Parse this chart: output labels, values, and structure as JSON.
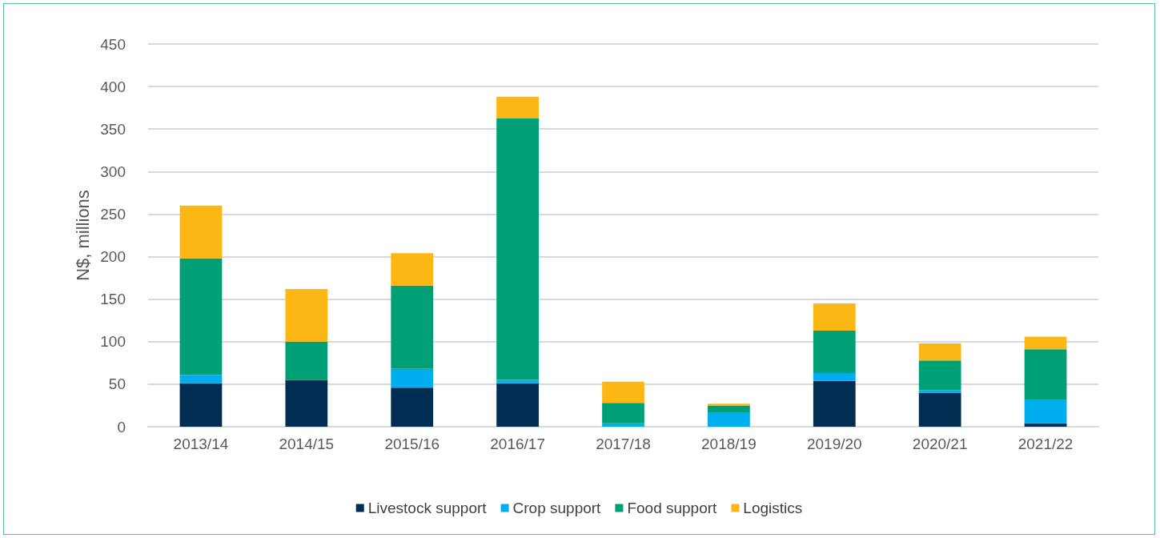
{
  "chart_data": {
    "type": "bar",
    "ylabel": "N$, millions",
    "categories": [
      "2013/14",
      "2014/15",
      "2015/16",
      "2016/17",
      "2017/18",
      "2018/19",
      "2019/20",
      "2020/21",
      "2021/22"
    ],
    "series": [
      {
        "name": "Livestock support",
        "color": "#002d51",
        "values": [
          51,
          55,
          46,
          51,
          0,
          0,
          54,
          40,
          4
        ]
      },
      {
        "name": "Crop support",
        "color": "#00adef",
        "values": [
          10,
          0,
          22,
          4,
          4,
          17,
          9,
          3,
          28
        ]
      },
      {
        "name": "Food support",
        "color": "#00a077",
        "values": [
          137,
          45,
          98,
          308,
          24,
          8,
          50,
          35,
          59
        ]
      },
      {
        "name": "Logistics",
        "color": "#fdb714",
        "values": [
          62,
          62,
          38,
          25,
          25,
          2,
          32,
          20,
          15
        ]
      }
    ],
    "stacked": true,
    "ylim": [
      0,
      450
    ],
    "yticks": [
      0,
      50,
      100,
      150,
      200,
      250,
      300,
      350,
      400,
      450
    ],
    "grid": "y",
    "legend": "bottom"
  }
}
